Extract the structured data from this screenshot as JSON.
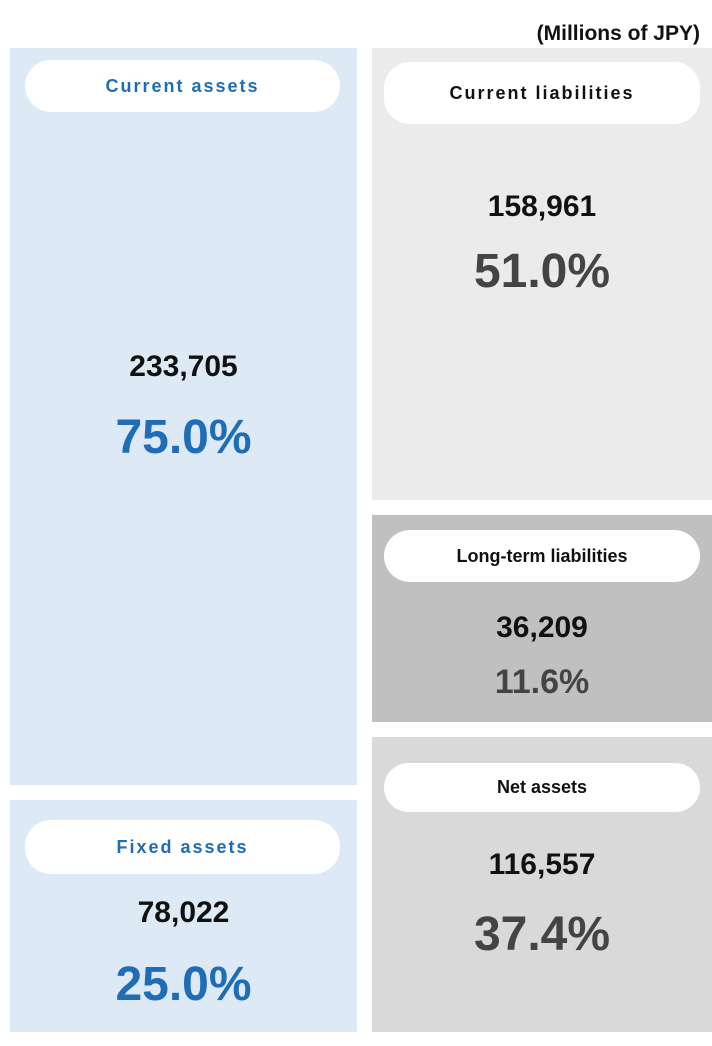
{
  "unit": "(Millions of JPY)",
  "assets": [
    {
      "label": "Current assets",
      "amount": "233,705",
      "share": "75.0%"
    },
    {
      "label": "Fixed assets",
      "amount": "78,022",
      "share": "25.0%"
    }
  ],
  "liabilities_and_net_assets": [
    {
      "label": "Current liabilities",
      "amount": "158,961",
      "share": "51.0%"
    },
    {
      "label": "Long-term liabilities",
      "amount": "36,209",
      "share": "11.6%"
    },
    {
      "label": "Net assets",
      "amount": "116,557",
      "share": "37.4%"
    }
  ]
}
